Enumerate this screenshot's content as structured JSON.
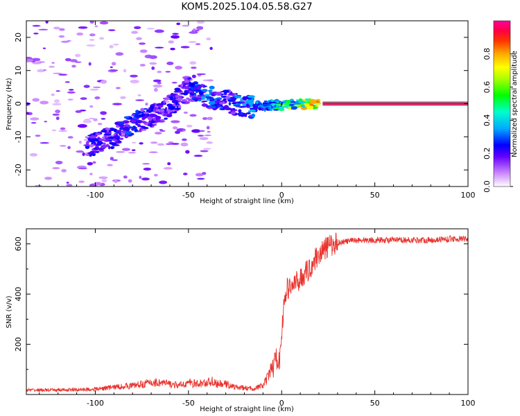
{
  "figure_title": "KOM5.2025.104.05.58.G27",
  "colors": {
    "snr_line": "#e8302a",
    "background": "#ffffff",
    "blob_light": "#cfa8f0"
  },
  "chart_data": [
    {
      "type": "heatmap",
      "xlabel": "Height of straight line (km)",
      "ylabel": "Frequency (Hz)",
      "xlim": [
        -137,
        100
      ],
      "ylim": [
        -25,
        25
      ],
      "x_ticks": [
        -100,
        -50,
        0,
        50,
        100
      ],
      "y_ticks": [
        -20,
        -10,
        0,
        10,
        20
      ],
      "colorbar": {
        "label": "Normalized spectral amplitude",
        "range": [
          0,
          1
        ],
        "ticks": [
          "0.0",
          "0.2",
          "0.4",
          "0.6",
          "0.8"
        ],
        "colormap": "gist_rainbow"
      },
      "ridge": {
        "description_points": [
          {
            "h": -100,
            "f": -12,
            "a": 0.2
          },
          {
            "h": -90,
            "f": -10,
            "a": 0.2
          },
          {
            "h": -80,
            "f": -6,
            "a": 0.25
          },
          {
            "h": -70,
            "f": -4,
            "a": 0.2
          },
          {
            "h": -60,
            "f": -1,
            "a": 0.2
          },
          {
            "h": -50,
            "f": 5,
            "a": 0.2
          },
          {
            "h": -40,
            "f": 2,
            "a": 0.3
          },
          {
            "h": -30,
            "f": 1,
            "a": 0.2
          },
          {
            "h": -20,
            "f": -1,
            "a": 0.3
          },
          {
            "h": -10,
            "f": -0.5,
            "a": 0.3
          },
          {
            "h": 0,
            "f": -0.5,
            "a": 0.5
          },
          {
            "h": 10,
            "f": 0,
            "a": 0.6
          },
          {
            "h": 20,
            "f": 0,
            "a": 0.7
          }
        ],
        "constant_band": {
          "h_start": 22,
          "h_end": 100,
          "f": 0,
          "a": 0.95
        }
      },
      "grid": false
    },
    {
      "type": "line",
      "xlabel": "Height of straight line (km)",
      "ylabel": "SNR (v/v)",
      "xlim": [
        -137,
        100
      ],
      "ylim": [
        0,
        660
      ],
      "x_ticks": [
        -100,
        -50,
        0,
        50,
        100
      ],
      "y_ticks": [
        200,
        400,
        600
      ],
      "series": [
        {
          "color": "#e8302a",
          "x": [
            -137,
            -120,
            -110,
            -100,
            -90,
            -80,
            -75,
            -70,
            -65,
            -60,
            -55,
            -50,
            -45,
            -40,
            -37,
            -35,
            -30,
            -25,
            -20,
            -15,
            -10,
            -7,
            -5,
            -3,
            -2,
            -1,
            0,
            1,
            2,
            3,
            5,
            7,
            10,
            12,
            15,
            18,
            20,
            25,
            30,
            35,
            40,
            50,
            60,
            70,
            80,
            90,
            100
          ],
          "y": [
            15,
            15,
            16,
            18,
            25,
            30,
            35,
            40,
            40,
            35,
            30,
            40,
            35,
            40,
            45,
            35,
            35,
            25,
            22,
            20,
            30,
            60,
            100,
            140,
            150,
            130,
            250,
            330,
            400,
            420,
            430,
            440,
            460,
            480,
            500,
            540,
            560,
            590,
            605,
            610,
            615,
            615,
            615,
            615,
            615,
            620,
            620
          ]
        }
      ],
      "grid": false
    }
  ]
}
